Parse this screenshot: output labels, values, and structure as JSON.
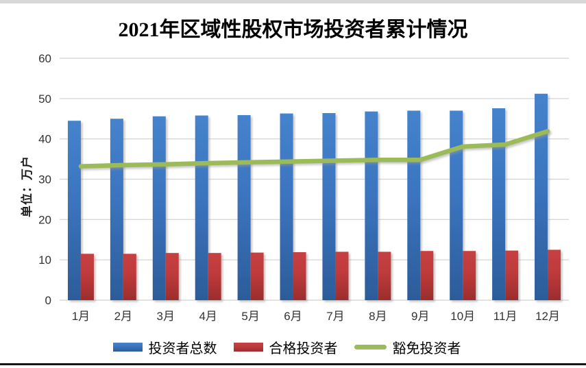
{
  "title": "2021年区域性股权市场投资者累计情况",
  "chart_data": {
    "type": "bar",
    "subtype": "combo-bar-line",
    "title": "2021年区域性股权市场投资者累计情况",
    "ylabel": "单位：万户",
    "xlabel": "",
    "ylim": [
      0,
      60
    ],
    "ytick_step": 10,
    "grid": "horizontal",
    "legend_position": "bottom",
    "categories": [
      "1月",
      "2月",
      "3月",
      "4月",
      "5月",
      "6月",
      "7月",
      "8月",
      "9月",
      "10月",
      "11月",
      "12月"
    ],
    "series": [
      {
        "name": "投资者总数",
        "kind": "bar",
        "color": "#3b74be",
        "values": [
          44.5,
          45.0,
          45.6,
          45.8,
          45.9,
          46.3,
          46.4,
          46.8,
          47.0,
          47.0,
          47.6,
          51.2
        ]
      },
      {
        "name": "合格投资者",
        "kind": "bar",
        "color": "#be3a3b",
        "values": [
          11.5,
          11.5,
          11.7,
          11.7,
          11.8,
          11.9,
          12.0,
          12.0,
          12.2,
          12.2,
          12.3,
          12.5
        ]
      },
      {
        "name": "豁免投资者",
        "kind": "line",
        "color": "#9bba59",
        "values": [
          33.2,
          33.5,
          33.7,
          34.0,
          34.2,
          34.4,
          34.6,
          34.8,
          34.8,
          38.1,
          38.6,
          41.9
        ]
      }
    ]
  },
  "colors": {
    "bar_blue": "#3b74be",
    "bar_red": "#be3a3b",
    "line_green": "#9bba59",
    "gridline": "#d8d8d8",
    "tick_text": "#333333"
  }
}
